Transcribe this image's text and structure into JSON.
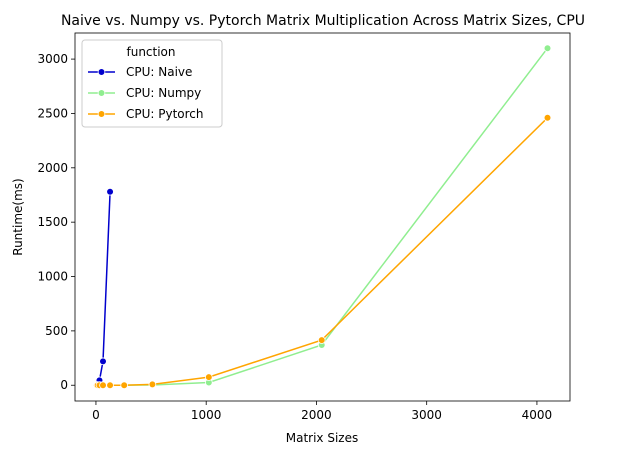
{
  "chart_data": {
    "type": "line",
    "title": "Naive vs. Numpy vs. Pytorch Matrix Multiplication Across Matrix Sizes, CPU",
    "xlabel": "Matrix Sizes",
    "ylabel": "Runtime(ms)",
    "xlim": [
      -190,
      4300
    ],
    "ylim": [
      -145,
      3240
    ],
    "xticks": [
      0,
      1000,
      2000,
      3000,
      4000
    ],
    "yticks": [
      0,
      500,
      1000,
      1500,
      2000,
      2500,
      3000
    ],
    "grid": false,
    "legend": {
      "title": "function",
      "placement": "top-left"
    },
    "series": [
      {
        "name": "CPU: Naive",
        "color": "#0000cd",
        "points": [
          [
            8,
            0
          ],
          [
            16,
            2
          ],
          [
            32,
            45
          ],
          [
            64,
            220
          ],
          [
            128,
            1780
          ]
        ]
      },
      {
        "name": "CPU: Numpy",
        "color": "#90ee90",
        "points": [
          [
            8,
            0
          ],
          [
            16,
            0
          ],
          [
            32,
            0
          ],
          [
            64,
            0
          ],
          [
            128,
            0
          ],
          [
            256,
            0
          ],
          [
            512,
            2
          ],
          [
            1024,
            25
          ],
          [
            2048,
            370
          ],
          [
            4096,
            3100
          ]
        ]
      },
      {
        "name": "CPU: Pytorch",
        "color": "#ffa500",
        "points": [
          [
            8,
            0
          ],
          [
            16,
            0
          ],
          [
            32,
            0
          ],
          [
            64,
            0
          ],
          [
            128,
            0
          ],
          [
            256,
            0
          ],
          [
            512,
            8
          ],
          [
            1024,
            75
          ],
          [
            2048,
            415
          ],
          [
            4096,
            2460
          ]
        ]
      }
    ]
  }
}
